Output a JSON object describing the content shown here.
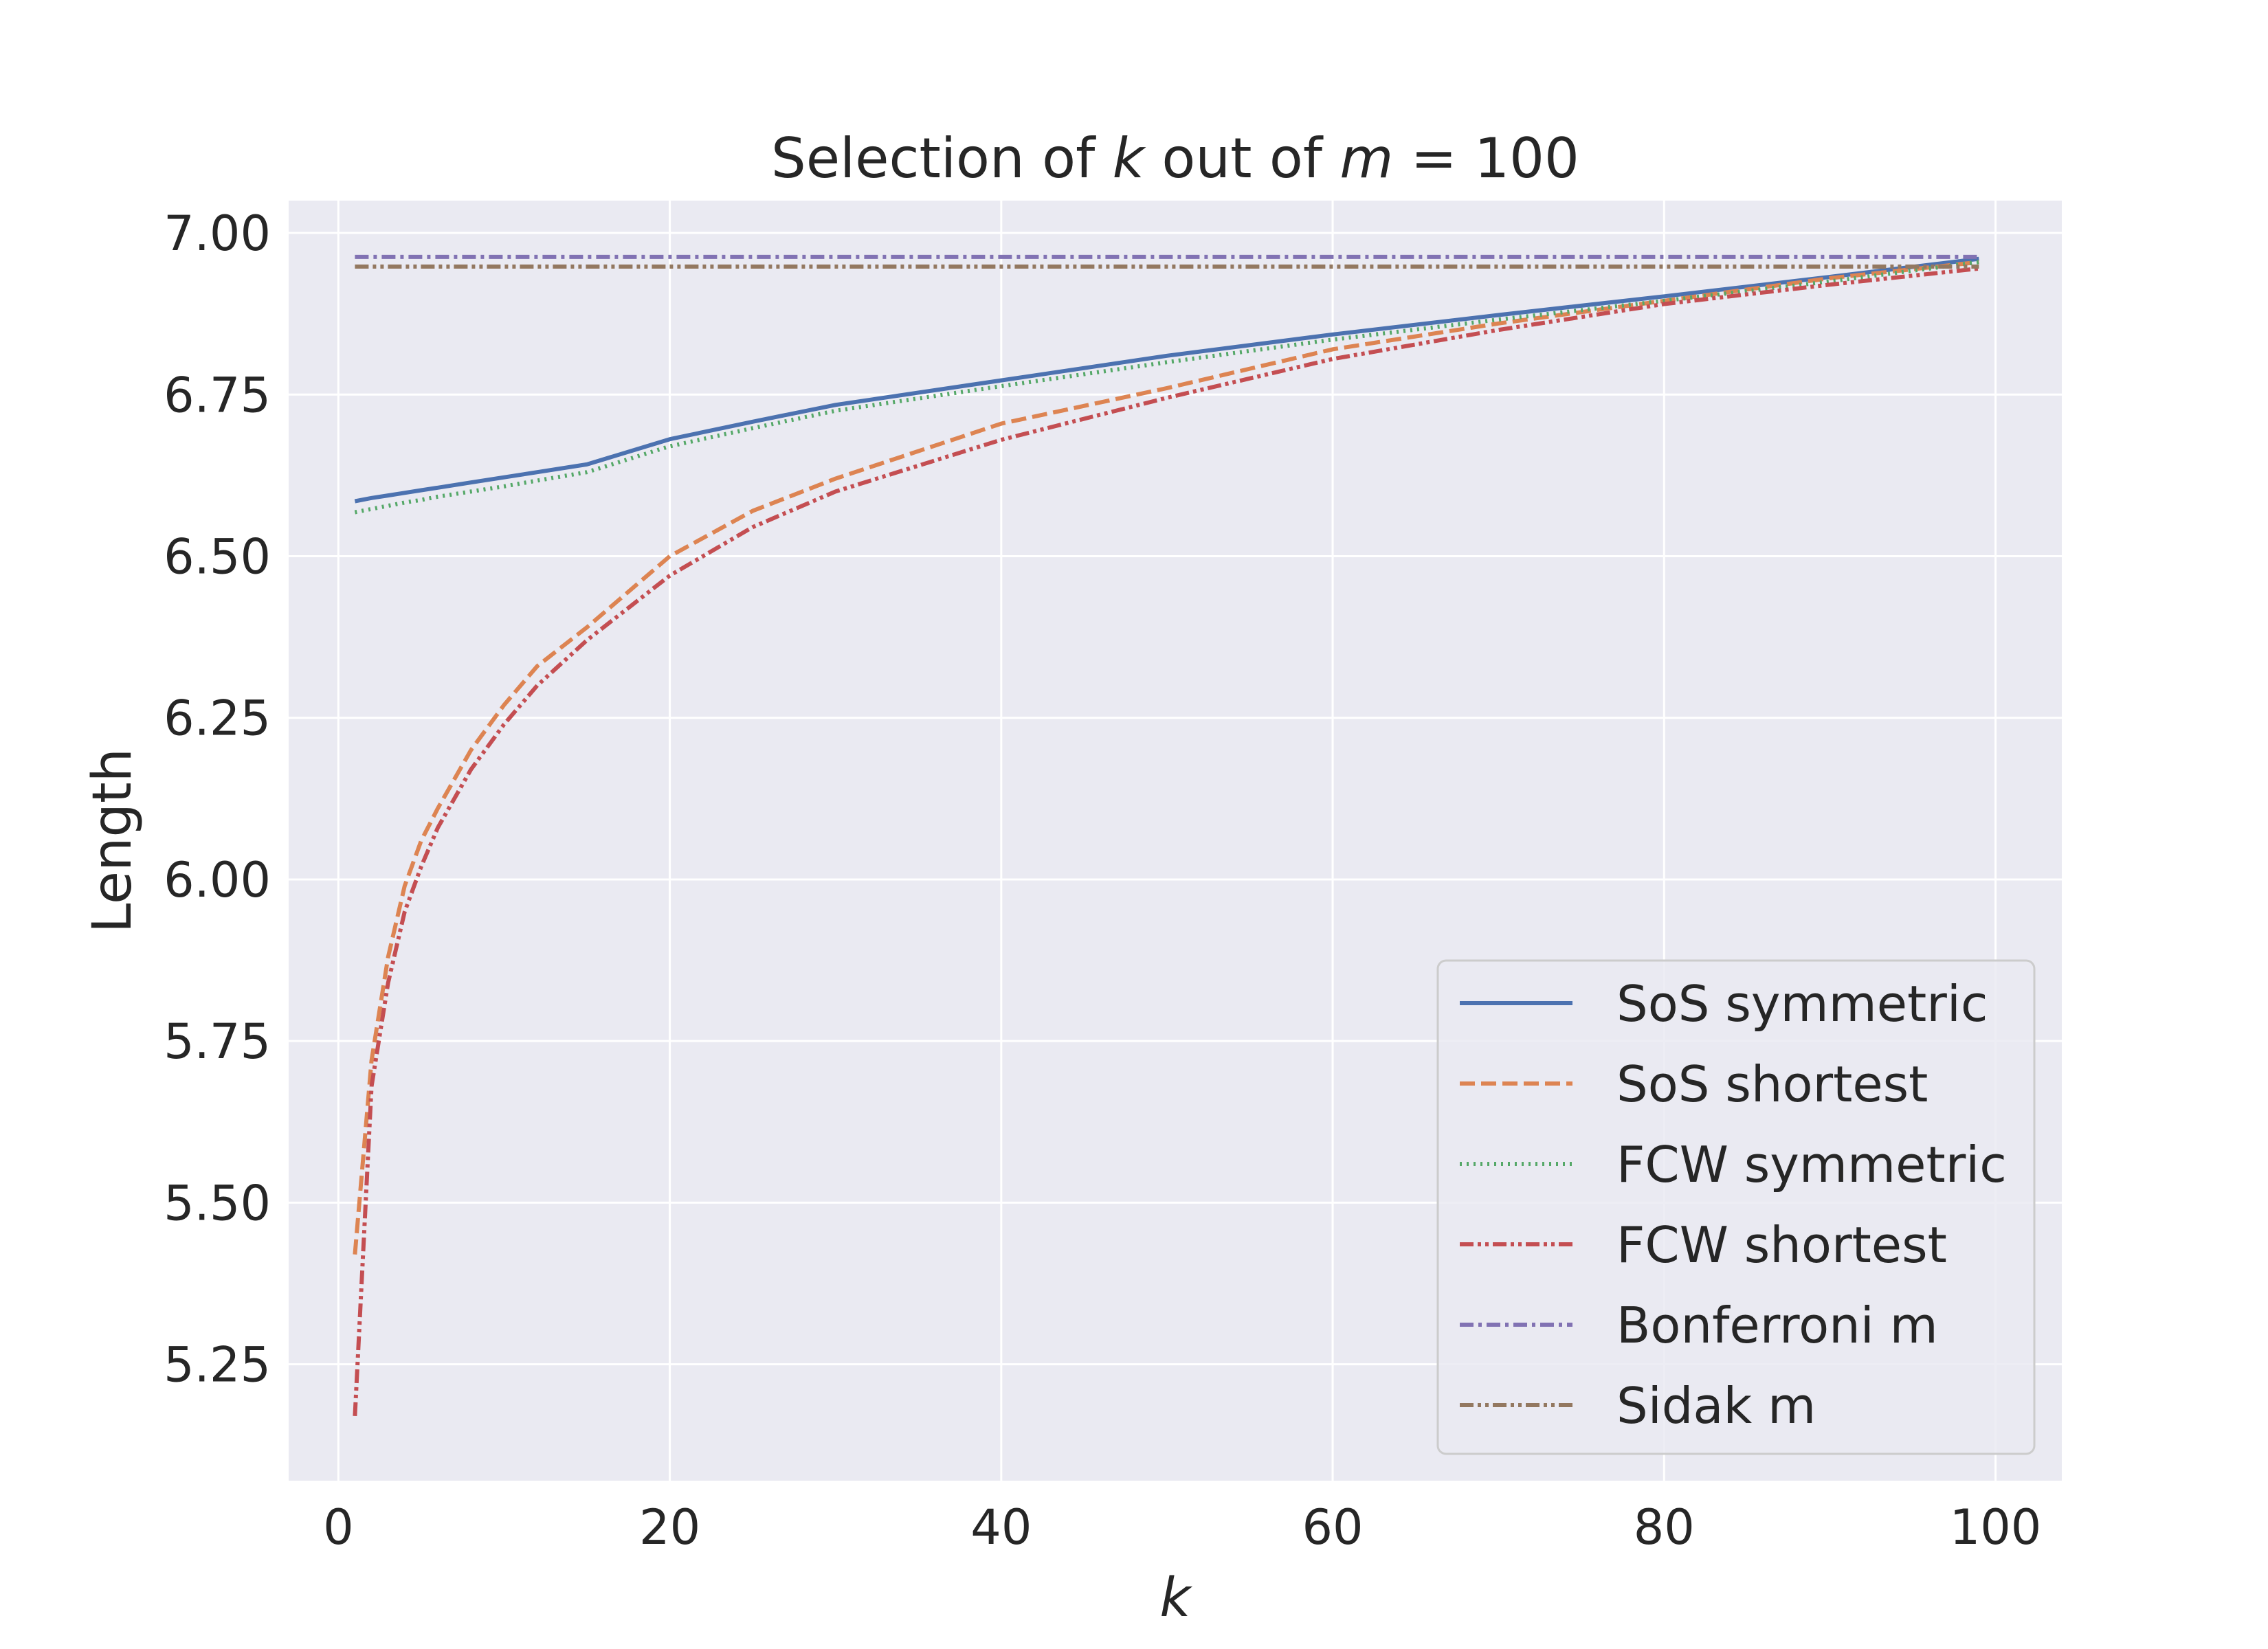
{
  "chart_data": {
    "type": "line",
    "title": {
      "prefix": "Selection of ",
      "var1": "k",
      "middle": " out of ",
      "var2": "m",
      "suffix": " = 100"
    },
    "xlabel": "k",
    "ylabel": "Length",
    "xlim": [
      -3,
      104
    ],
    "ylim": [
      5.07,
      7.05
    ],
    "xticks": [
      0,
      20,
      40,
      60,
      80,
      100
    ],
    "xtick_labels": [
      "0",
      "20",
      "40",
      "60",
      "80",
      "100"
    ],
    "yticks": [
      5.25,
      5.5,
      5.75,
      6.0,
      6.25,
      6.5,
      6.75,
      7.0
    ],
    "ytick_labels": [
      "5.25",
      "5.50",
      "5.75",
      "6.00",
      "6.25",
      "6.50",
      "6.75",
      "7.00"
    ],
    "grid": true,
    "legend_position": "lower-right",
    "x": [
      1,
      2,
      3,
      4,
      5,
      6,
      8,
      10,
      12,
      15,
      20,
      25,
      30,
      40,
      50,
      60,
      70,
      80,
      90,
      99
    ],
    "series": [
      {
        "name": "SoS symmetric",
        "color": "#4c72b0",
        "dash": "solid",
        "values": [
          6.585,
          6.59,
          6.594,
          6.598,
          6.602,
          6.606,
          6.614,
          6.622,
          6.63,
          6.642,
          6.681,
          6.708,
          6.734,
          6.772,
          6.81,
          6.843,
          6.873,
          6.902,
          6.932,
          6.96
        ]
      },
      {
        "name": "SoS shortest",
        "color": "#dd8452",
        "dash": "dashed",
        "values": [
          5.42,
          5.72,
          5.88,
          5.99,
          6.06,
          6.11,
          6.2,
          6.27,
          6.33,
          6.39,
          6.5,
          6.57,
          6.62,
          6.705,
          6.76,
          6.82,
          6.86,
          6.895,
          6.93,
          6.955
        ]
      },
      {
        "name": "FCW symmetric",
        "color": "#55a868",
        "dash": "dotted",
        "values": [
          6.568,
          6.573,
          6.578,
          6.583,
          6.587,
          6.592,
          6.6,
          6.608,
          6.617,
          6.63,
          6.67,
          6.698,
          6.725,
          6.763,
          6.8,
          6.835,
          6.866,
          6.895,
          6.925,
          6.955
        ]
      },
      {
        "name": "FCW shortest",
        "color": "#c44e52",
        "dash": "dashdotdot",
        "values": [
          5.17,
          5.68,
          5.84,
          5.95,
          6.02,
          6.08,
          6.17,
          6.24,
          6.3,
          6.37,
          6.47,
          6.545,
          6.6,
          6.68,
          6.745,
          6.805,
          6.85,
          6.89,
          6.92,
          6.945
        ]
      },
      {
        "name": "Bonferroni m",
        "color": "#8172b3",
        "dash": "dashdot",
        "values": [
          6.963,
          6.963,
          6.963,
          6.963,
          6.963,
          6.963,
          6.963,
          6.963,
          6.963,
          6.963,
          6.963,
          6.963,
          6.963,
          6.963,
          6.963,
          6.963,
          6.963,
          6.963,
          6.963,
          6.963
        ]
      },
      {
        "name": "Sidak m",
        "color": "#937860",
        "dash": "dashdotdot",
        "values": [
          6.948,
          6.948,
          6.948,
          6.948,
          6.948,
          6.948,
          6.948,
          6.948,
          6.948,
          6.948,
          6.948,
          6.948,
          6.948,
          6.948,
          6.948,
          6.948,
          6.948,
          6.948,
          6.948,
          6.948
        ]
      }
    ]
  }
}
